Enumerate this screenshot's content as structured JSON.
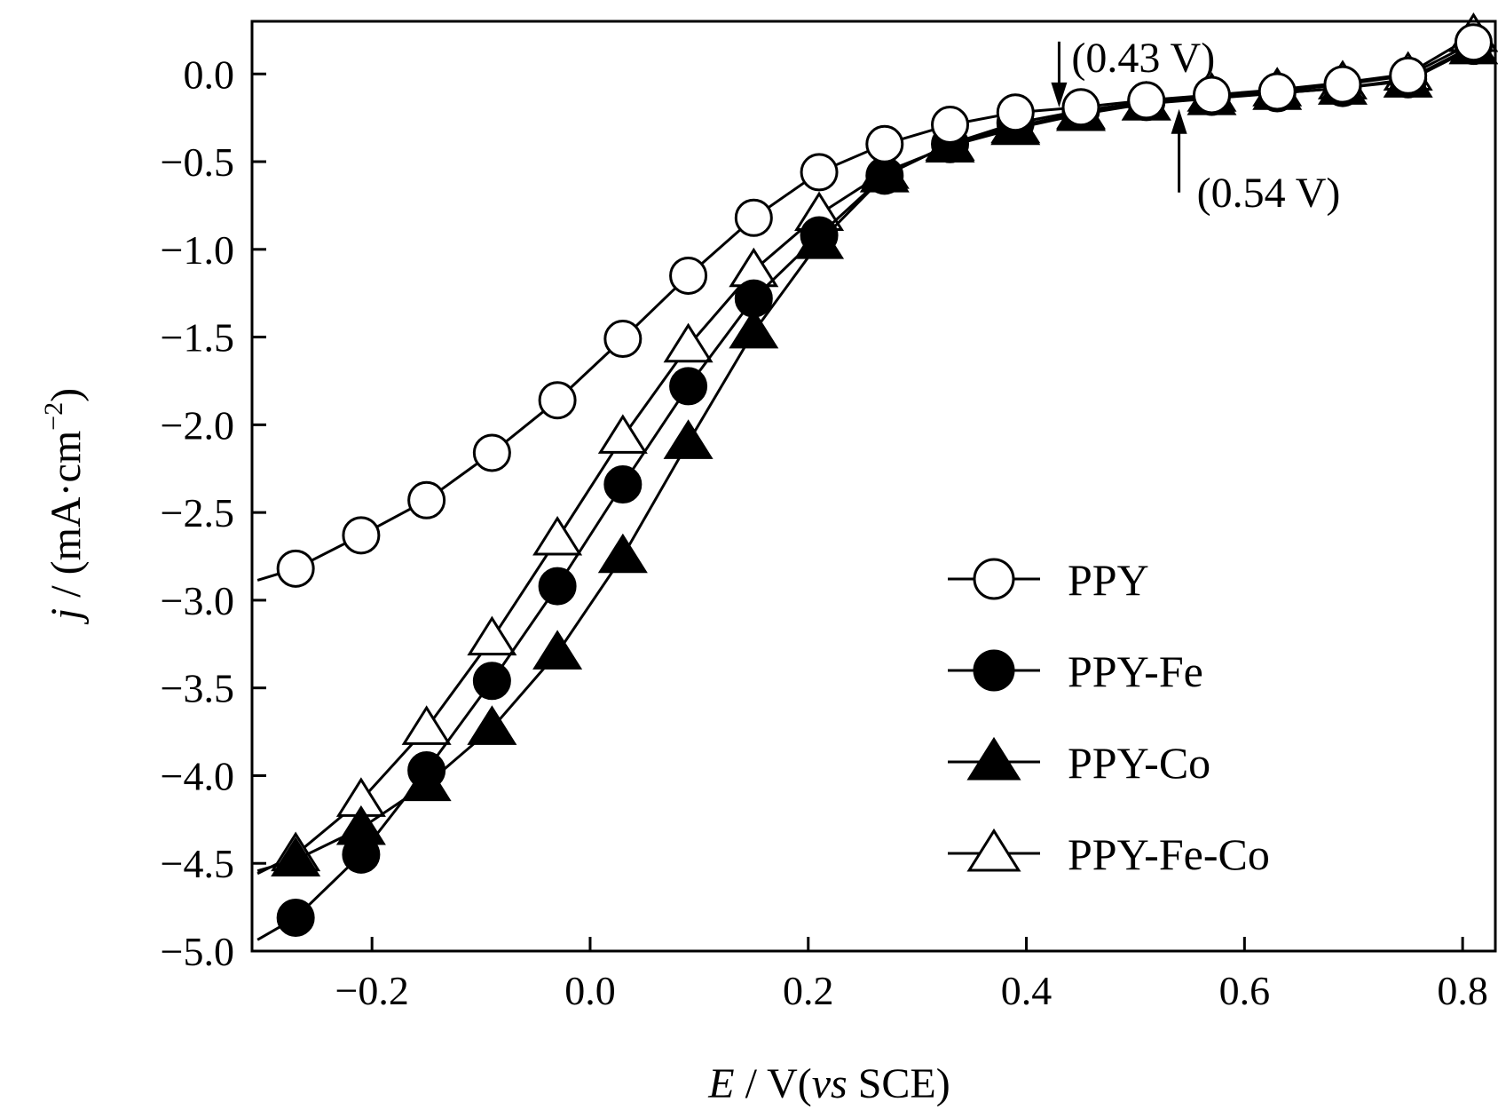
{
  "chart_data": {
    "type": "line",
    "xlabel": {
      "var": "E",
      "rest": " / V(",
      "italic": "vs",
      "tail": " SCE)"
    },
    "ylabel": {
      "var": "j",
      "rest": " / (mA·cm",
      "sup": "−2",
      "tail": ")"
    },
    "xlim": [
      -0.31,
      0.83
    ],
    "ylim": [
      -5.0,
      0.3
    ],
    "x_ticks": [
      -0.2,
      0.0,
      0.2,
      0.4,
      0.6,
      0.8
    ],
    "x_tick_labels": [
      "−0.2",
      "0.0",
      "0.2",
      "0.4",
      "0.6",
      "0.8"
    ],
    "y_ticks": [
      0.0,
      -0.5,
      -1.0,
      -1.5,
      -2.0,
      -2.5,
      -3.0,
      -3.5,
      -4.0,
      -4.5,
      -5.0
    ],
    "y_tick_labels": [
      "0.0",
      "−0.5",
      "−1.0",
      "−1.5",
      "−2.0",
      "−2.5",
      "−3.0",
      "−3.5",
      "−4.0",
      "−4.5",
      "−5.0"
    ],
    "grid": false,
    "legend_position": "bottom-right",
    "series": [
      {
        "name": "PPY",
        "marker": "circle-open",
        "x": [
          -0.27,
          -0.21,
          -0.15,
          -0.09,
          -0.03,
          0.03,
          0.09,
          0.15,
          0.21,
          0.27,
          0.33,
          0.39,
          0.45,
          0.51,
          0.57,
          0.63,
          0.69,
          0.75,
          0.81
        ],
        "y": [
          -2.82,
          -2.63,
          -2.43,
          -2.16,
          -1.86,
          -1.51,
          -1.15,
          -0.82,
          -0.56,
          -0.4,
          -0.29,
          -0.22,
          -0.19,
          -0.15,
          -0.12,
          -0.1,
          -0.06,
          -0.01,
          0.18
        ]
      },
      {
        "name": "PPY-Fe",
        "marker": "circle-filled",
        "x": [
          -0.27,
          -0.21,
          -0.15,
          -0.09,
          -0.03,
          0.03,
          0.09,
          0.15,
          0.21,
          0.27,
          0.33,
          0.39,
          0.45,
          0.51,
          0.57,
          0.63,
          0.69,
          0.75,
          0.81
        ],
        "y": [
          -4.81,
          -4.45,
          -3.97,
          -3.46,
          -2.92,
          -2.34,
          -1.78,
          -1.28,
          -0.92,
          -0.58,
          -0.4,
          -0.28,
          -0.21,
          -0.16,
          -0.13,
          -0.11,
          -0.08,
          -0.03,
          0.16
        ]
      },
      {
        "name": "PPY-Co",
        "marker": "triangle-filled",
        "x": [
          -0.27,
          -0.21,
          -0.15,
          -0.09,
          -0.03,
          0.03,
          0.09,
          0.15,
          0.21,
          0.27,
          0.33,
          0.39,
          0.45,
          0.51,
          0.57,
          0.63,
          0.69,
          0.75,
          0.81
        ],
        "y": [
          -4.48,
          -4.3,
          -4.05,
          -3.73,
          -3.3,
          -2.75,
          -2.1,
          -1.47,
          -0.96,
          -0.58,
          -0.4,
          -0.3,
          -0.22,
          -0.17,
          -0.14,
          -0.11,
          -0.08,
          -0.04,
          0.15
        ]
      },
      {
        "name": "PPY-Fe-Co",
        "marker": "triangle-open",
        "x": [
          -0.27,
          -0.21,
          -0.15,
          -0.09,
          -0.03,
          0.03,
          0.09,
          0.15,
          0.21,
          0.27,
          0.33,
          0.39,
          0.45,
          0.51,
          0.57,
          0.63,
          0.69,
          0.75,
          0.81
        ],
        "y": [
          -4.45,
          -4.14,
          -3.73,
          -3.22,
          -2.65,
          -2.07,
          -1.55,
          -1.12,
          -0.8,
          -0.56,
          -0.41,
          -0.31,
          -0.23,
          -0.17,
          -0.12,
          -0.09,
          -0.05,
          0.0,
          0.22
        ]
      }
    ],
    "annotations": [
      {
        "label": "(0.43 V)",
        "x": 0.43,
        "y": -0.18,
        "arrow": "down"
      },
      {
        "label": "(0.54 V)",
        "x": 0.54,
        "y": -0.19,
        "arrow": "up"
      }
    ]
  }
}
